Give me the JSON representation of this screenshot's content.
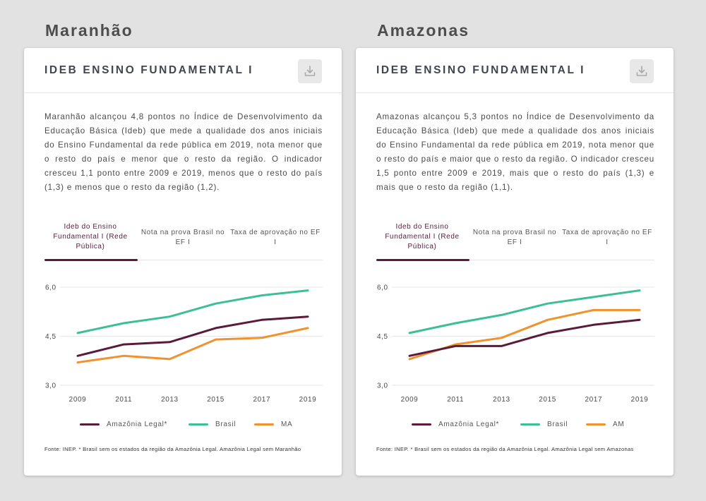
{
  "panels": [
    {
      "state": "Maranhão",
      "card_title": "IDEB ENSINO FUNDAMENTAL I",
      "description": "Maranhão alcançou 4,8 pontos no Índice de Desenvolvimento da Educação Básica (Ideb) que mede a qualidade dos anos iniciais do Ensino Fundamental da rede pública em 2019, nota menor que o resto do país e menor que o resto da região. O indicador cresceu 1,1 ponto entre 2009 e 2019, menos que o resto do país (1,3) e menos que o resto da região (1,2).",
      "tabs": [
        "Ideb do Ensino Fundamental I (Rede Pública)",
        "Nota na prova Brasil no EF I",
        "Taxa de aprovação no EF I"
      ],
      "active_tab": 0,
      "source": "Fonte: INEP. * Brasil sem os estados da região da Amazônia Legal. Amazônia Legal sem Maranhão"
    },
    {
      "state": "Amazonas",
      "card_title": "IDEB ENSINO FUNDAMENTAL I",
      "description": "Amazonas alcançou 5,3 pontos no Índice de Desenvolvimento da Educação Básica (Ideb) que mede a qualidade dos anos iniciais do Ensino Fundamental da rede pública em 2019, nota menor que o resto do país e maior que o resto da região. O indicador cresceu 1,5 ponto entre 2009 e 2019, mais que o resto do país (1,3) e mais que o resto da região (1,1).",
      "tabs": [
        "Ideb do Ensino Fundamental I (Rede Pública)",
        "Nota na prova Brasil no EF I",
        "Taxa de aprovação no EF I"
      ],
      "active_tab": 0,
      "source": "Fonte: INEP. * Brasil sem os estados da região da Amazônia Legal. Amazônia Legal sem Amazonas"
    }
  ],
  "colors": {
    "amazonia": "#5a1a3b",
    "brasil": "#3cbf96",
    "state": "#f0922e",
    "grid": "#e6e6e6"
  },
  "icons": {
    "download": "download-icon"
  },
  "chart_data": [
    {
      "type": "line",
      "x": [
        "2009",
        "2011",
        "2013",
        "2015",
        "2017",
        "2019"
      ],
      "ylim": [
        3.0,
        6.0
      ],
      "yticks": [
        "6,0",
        "4,5",
        "3,0"
      ],
      "ytick_values": [
        6.0,
        4.5,
        3.0
      ],
      "grid": true,
      "legend_position": "bottom",
      "series": [
        {
          "name": "Amazônia Legal*",
          "color": "#5a1a3b",
          "values": [
            3.9,
            4.25,
            4.32,
            4.75,
            5.0,
            5.1
          ]
        },
        {
          "name": "Brasil",
          "color": "#3cbf96",
          "values": [
            4.6,
            4.9,
            5.1,
            5.5,
            5.75,
            5.9
          ]
        },
        {
          "name": "MA",
          "color": "#f0922e",
          "values": [
            3.7,
            3.9,
            3.8,
            4.4,
            4.45,
            4.75
          ]
        }
      ]
    },
    {
      "type": "line",
      "x": [
        "2009",
        "2011",
        "2013",
        "2015",
        "2017",
        "2019"
      ],
      "ylim": [
        3.0,
        6.0
      ],
      "yticks": [
        "6,0",
        "4,5",
        "3,0"
      ],
      "ytick_values": [
        6.0,
        4.5,
        3.0
      ],
      "grid": true,
      "legend_position": "bottom",
      "series": [
        {
          "name": "Amazônia Legal*",
          "color": "#5a1a3b",
          "values": [
            3.9,
            4.2,
            4.2,
            4.6,
            4.85,
            5.0
          ]
        },
        {
          "name": "Brasil",
          "color": "#3cbf96",
          "values": [
            4.6,
            4.9,
            5.15,
            5.5,
            5.7,
            5.9
          ]
        },
        {
          "name": "AM",
          "color": "#f0922e",
          "values": [
            3.8,
            4.25,
            4.45,
            5.0,
            5.3,
            5.3
          ]
        }
      ]
    }
  ]
}
